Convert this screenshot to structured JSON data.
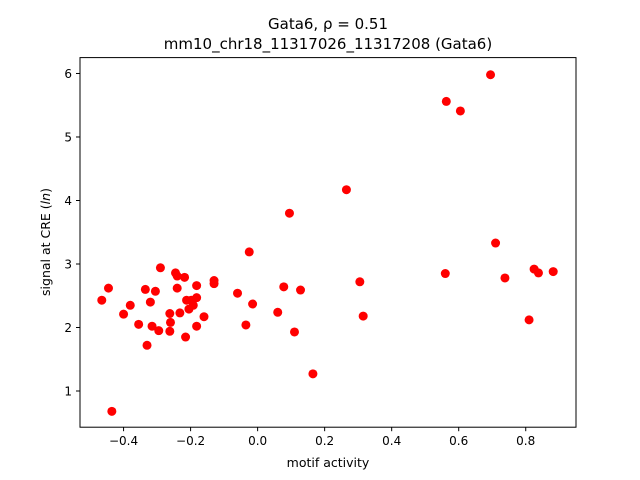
{
  "chart_data": {
    "type": "scatter",
    "title_line1": "Gata6, ρ = 0.51",
    "title_line2": "mm10_chr18_11317026_11317208 (Gata6)",
    "xlabel": "motif activity",
    "ylabel_prefix": "signal at CRE (",
    "ylabel_italic": "ln",
    "ylabel_suffix": ")",
    "xlim": [
      -0.53,
      0.95
    ],
    "ylim": [
      0.43,
      6.25
    ],
    "xticks": [
      -0.4,
      -0.2,
      0.0,
      0.2,
      0.4,
      0.6,
      0.8
    ],
    "xtick_labels": [
      "−0.4",
      "−0.2",
      "0.0",
      "0.2",
      "0.4",
      "0.6",
      "0.8"
    ],
    "yticks": [
      1,
      2,
      3,
      4,
      5,
      6
    ],
    "ytick_labels": [
      "1",
      "2",
      "3",
      "4",
      "5",
      "6"
    ],
    "grid": false,
    "legend": false,
    "marker_color": "#ff0000",
    "points": [
      {
        "x": -0.465,
        "y": 2.43
      },
      {
        "x": -0.445,
        "y": 2.62
      },
      {
        "x": -0.435,
        "y": 0.68
      },
      {
        "x": -0.4,
        "y": 2.21
      },
      {
        "x": -0.38,
        "y": 2.35
      },
      {
        "x": -0.355,
        "y": 2.05
      },
      {
        "x": -0.335,
        "y": 2.6
      },
      {
        "x": -0.33,
        "y": 1.72
      },
      {
        "x": -0.32,
        "y": 2.4
      },
      {
        "x": -0.315,
        "y": 2.02
      },
      {
        "x": -0.305,
        "y": 2.57
      },
      {
        "x": -0.295,
        "y": 1.95
      },
      {
        "x": -0.29,
        "y": 2.94
      },
      {
        "x": -0.262,
        "y": 2.22
      },
      {
        "x": -0.26,
        "y": 2.08
      },
      {
        "x": -0.262,
        "y": 1.94
      },
      {
        "x": -0.245,
        "y": 2.86
      },
      {
        "x": -0.24,
        "y": 2.81
      },
      {
        "x": -0.24,
        "y": 2.62
      },
      {
        "x": -0.232,
        "y": 2.23
      },
      {
        "x": -0.218,
        "y": 2.79
      },
      {
        "x": -0.215,
        "y": 1.85
      },
      {
        "x": -0.212,
        "y": 2.43
      },
      {
        "x": -0.205,
        "y": 2.29
      },
      {
        "x": -0.198,
        "y": 2.43
      },
      {
        "x": -0.192,
        "y": 2.35
      },
      {
        "x": -0.182,
        "y": 2.47
      },
      {
        "x": -0.182,
        "y": 2.66
      },
      {
        "x": -0.182,
        "y": 2.02
      },
      {
        "x": -0.16,
        "y": 2.17
      },
      {
        "x": -0.13,
        "y": 2.74
      },
      {
        "x": -0.13,
        "y": 2.69
      },
      {
        "x": -0.06,
        "y": 2.54
      },
      {
        "x": -0.035,
        "y": 2.04
      },
      {
        "x": -0.025,
        "y": 3.19
      },
      {
        "x": -0.015,
        "y": 2.37
      },
      {
        "x": 0.06,
        "y": 2.24
      },
      {
        "x": 0.078,
        "y": 2.64
      },
      {
        "x": 0.095,
        "y": 3.8
      },
      {
        "x": 0.11,
        "y": 1.93
      },
      {
        "x": 0.128,
        "y": 2.59
      },
      {
        "x": 0.165,
        "y": 1.27
      },
      {
        "x": 0.265,
        "y": 4.17
      },
      {
        "x": 0.305,
        "y": 2.72
      },
      {
        "x": 0.315,
        "y": 2.18
      },
      {
        "x": 0.56,
        "y": 2.85
      },
      {
        "x": 0.563,
        "y": 5.56
      },
      {
        "x": 0.605,
        "y": 5.41
      },
      {
        "x": 0.695,
        "y": 5.98
      },
      {
        "x": 0.71,
        "y": 3.33
      },
      {
        "x": 0.738,
        "y": 2.78
      },
      {
        "x": 0.81,
        "y": 2.12
      },
      {
        "x": 0.825,
        "y": 2.92
      },
      {
        "x": 0.838,
        "y": 2.86
      },
      {
        "x": 0.882,
        "y": 2.88
      }
    ]
  }
}
